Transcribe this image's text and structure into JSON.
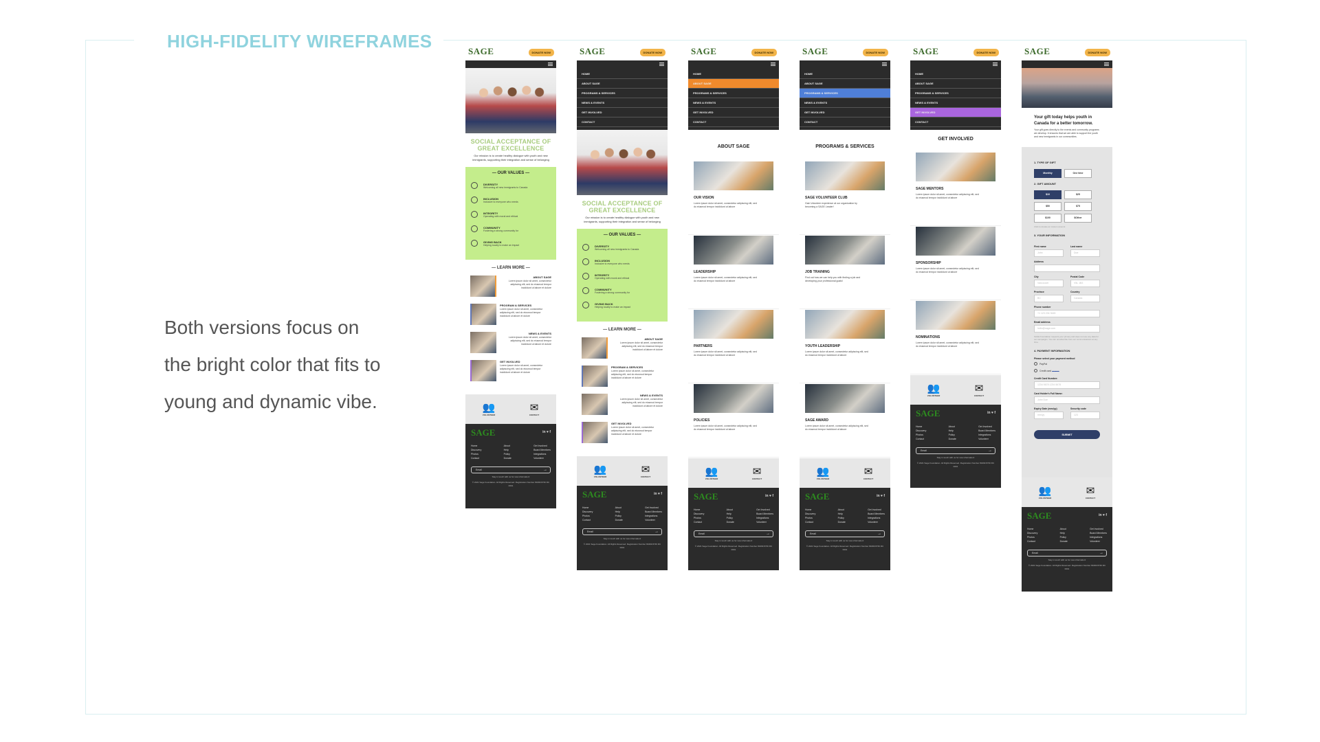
{
  "slide": {
    "title": "HIGH-FIDELITY WIREFRAMES",
    "description_lines": [
      "Both versions focus on",
      "the bright color that fits to",
      "young and dynamic vibe."
    ]
  },
  "common": {
    "logo": "SAGE",
    "donate": "DONATE NOW",
    "tagline": "SOCIAL ACCEPTANCE OF GREAT EXCELLENCE",
    "mission": "Our mission is to create healthy dialogue with youth and new immigrants, supporting their integration and sense of belonging",
    "values_heading": "— OUR VALUES —",
    "values": [
      {
        "name": "DIVERSITY",
        "desc": "Welcoming all new immigrants to Canada"
      },
      {
        "name": "INCLUSION",
        "desc": "Inclusive to everyone who needs"
      },
      {
        "name": "INTEGRITY",
        "desc": "Operating with moral and ethical"
      },
      {
        "name": "COMMUNITY",
        "desc": "Fostering a strong community for"
      },
      {
        "name": "GIVING BACK",
        "desc": "Helping locally to make an impact"
      }
    ],
    "learn_heading": "— LEARN MORE —",
    "learn_items": [
      {
        "title": "ABOUT SAGE",
        "desc": "Lorem ipsum dolor sit amet, consectetur adipiscing elit, sed do eiusmod tempor incididunt ut labore et dolore"
      },
      {
        "title": "PROGRAM & SERVICES",
        "desc": "Lorem ipsum dolor sit amet, consectetur adipiscing elit, sed do eiusmod tempor incididunt ut labore et dolore"
      },
      {
        "title": "NEWS & EVENTS",
        "desc": "Lorem ipsum dolor sit amet, consectetur adipiscing elit, sed do eiusmod tempor incididunt ut labore et dolore"
      },
      {
        "title": "GET INVOLVED",
        "desc": "Lorem ipsum dolor sit amet, consectetur adipiscing elit, sed do eiusmod tempor incididunt ut labore et dolore"
      }
    ],
    "menu": [
      "HOME",
      "ABOUT SAGE",
      "PROGRAMS & SERVICES",
      "NEWS & EVENTS",
      "GET INVOLVED",
      "CONTACT"
    ],
    "footer": {
      "volunteer": "VOLUNTEER",
      "contact": "CONTACT",
      "social": "in ♥ f",
      "col1": "Home\nDiscovery\nPhotos\nContact",
      "col2": "About\nHelp\nPolicy\nDonate",
      "col3": "Get Involved\nBoard Members\nIntegrations\nVolunteer",
      "email": "Email",
      "note": "Stay in touch with us for new information!",
      "copyright": "© 2021 Sage Foundation. All Rights Reserved. Registration Number 83499 8746 RC 0001"
    },
    "lorem": "Lorem ipsum dolor sit amet, consectetur adipiscing elit, sed do eiusmod tempor incididunt ut labore"
  },
  "about": {
    "title": "ABOUT SAGE",
    "cards": [
      "OUR VISION",
      "LEADERSHIP",
      "PARTNERS",
      "POLICIES"
    ]
  },
  "programs": {
    "title": "PROGRAMS & SERVICES",
    "cards": [
      {
        "title": "SAGE VOLUNTEER CLUB",
        "desc": "Gain Volunteer experience at our organization by becoming a SAGE Leader!"
      },
      {
        "title": "JOB TRAINING",
        "desc": "Find out how we can help you with finding a job and developing your professional goals!"
      },
      {
        "title": "YOUTH LEADERSHIP",
        "desc": "Lorem ipsum dolor sit amet, consectetur adipiscing elit, sed do eiusmod tempor incididunt ut labore"
      },
      {
        "title": "SAGE AWARD",
        "desc": "Lorem ipsum dolor sit amet, consectetur adipiscing elit, sed do eiusmod tempor incididunt ut labore"
      }
    ]
  },
  "involved": {
    "title": "GET INVOLVED",
    "cards": [
      "SAGE MENTORS",
      "SPONSORSHIP",
      "NOMINATIONS"
    ]
  },
  "donation": {
    "headline": "Your gift today helps youth in Canada for a better tomorrow.",
    "subtext": "Your gift goes directly to the events and community programs we develop. It ensures that we are able to support the youth and new immigrants in our communities.",
    "type_heading": "1. TYPE OF GIFT",
    "type_options": [
      "Monthly",
      "One time"
    ],
    "amount_heading": "2. GIFT AMOUNT",
    "amounts": [
      "$10",
      "$25",
      "$50",
      "$75",
      "$100",
      "$Other"
    ],
    "amount_note": "Click to donate an custom amount",
    "info_heading": "3. YOUR INFORMATION",
    "first_name": "First name",
    "last_name": "Last name",
    "first_ph": "John",
    "last_ph": "Doe",
    "address": "Address",
    "city": "City",
    "postal": "Postal Code",
    "city_ph": "Vancouver",
    "postal_ph": "V5L 1B3",
    "province": "Province",
    "country": "Country",
    "province_ph": "BC",
    "country_ph": "Canada",
    "phone": "Phone number",
    "phone_ph": "+1 123 234 3445",
    "email": "Email address",
    "email_ph": "hello@sage.com",
    "consent": "SAGE Foundation respects your privacy and does not use any data for our campaigns. You can unsubscribe from our communications at any time.",
    "payment_heading": "4. PAYMENT INFORMATION",
    "payment_sub": "Please select your payment method",
    "paypal": "PayPal",
    "credit": "Credit card",
    "card_number": "Credit Card Number:",
    "card_ph": "1234 5678 1234 5678",
    "holder": "Card Holder's Full Name:",
    "holder_ph": "John Doe",
    "expiry": "Expiry Date (mm/yy)",
    "expiry_ph": "mm/yy",
    "security": "Security code",
    "security_ph": "123",
    "submit": "SUBMIT"
  }
}
